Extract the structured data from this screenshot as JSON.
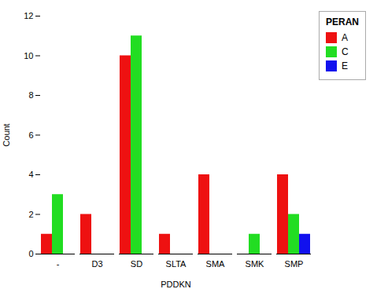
{
  "chart_data": {
    "type": "bar",
    "categories": [
      "-",
      "D3",
      "SD",
      "SLTA",
      "SMA",
      "SMK",
      "SMP"
    ],
    "series": [
      {
        "name": "A",
        "color": "#EE1111",
        "values": [
          1,
          2,
          10,
          1,
          4,
          0,
          4
        ]
      },
      {
        "name": "C",
        "color": "#22DD22",
        "values": [
          3,
          0,
          11,
          0,
          0,
          1,
          2
        ]
      },
      {
        "name": "E",
        "color": "#1111EE",
        "values": [
          0,
          0,
          0,
          0,
          0,
          0,
          1
        ]
      }
    ],
    "xlabel": "PDDKN",
    "ylabel": "Count",
    "legend_title": "PERAN",
    "legend": "right",
    "ylim": [
      0,
      12
    ],
    "yticks": [
      0,
      2,
      4,
      6,
      8,
      10,
      12
    ],
    "grid": false
  }
}
